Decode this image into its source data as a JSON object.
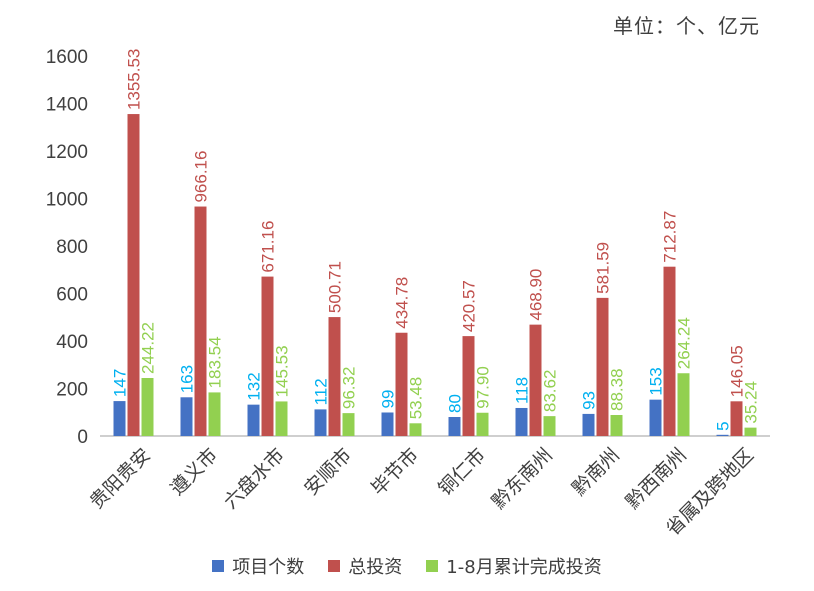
{
  "unit_note": "单位：个、亿元",
  "colors": {
    "projects": "#4472C4",
    "total": "#C0504D",
    "completed": "#92D050",
    "label_projects": "#00B0F0",
    "label_total": "#C0504D",
    "label_completed": "#92D050",
    "axis_text": "#404040",
    "axis_line": "#BFBFBF"
  },
  "chart_data": {
    "type": "bar",
    "title": "",
    "xlabel": "",
    "ylabel": "",
    "ylim": [
      0,
      1600
    ],
    "yticks": [
      0,
      200,
      400,
      600,
      800,
      1000,
      1200,
      1400,
      1600
    ],
    "grid": false,
    "legend_position": "bottom",
    "categories": [
      "贵阳贵安",
      "遵义市",
      "六盘水市",
      "安顺市",
      "毕节市",
      "铜仁市",
      "黔东南州",
      "黔南州",
      "黔西南州",
      "省属及跨地区"
    ],
    "series": [
      {
        "name": "项目个数",
        "values": [
          147,
          163,
          132,
          112,
          99,
          80,
          118,
          93,
          153,
          5
        ],
        "labels": [
          "147",
          "163",
          "132",
          "112",
          "99",
          "80",
          "118",
          "93",
          "153",
          "5"
        ]
      },
      {
        "name": "总投资",
        "values": [
          1355.53,
          966.16,
          671.16,
          500.71,
          434.78,
          420.57,
          468.9,
          581.59,
          712.87,
          146.05
        ],
        "labels": [
          "1355.53",
          "966.16",
          "671.16",
          "500.71",
          "434.78",
          "420.57",
          "468.90",
          "581.59",
          "712.87",
          "146.05"
        ]
      },
      {
        "name": "1-8月累计完成投资",
        "values": [
          244.22,
          183.54,
          145.53,
          96.32,
          53.48,
          97.9,
          83.62,
          88.38,
          264.24,
          35.24
        ],
        "labels": [
          "244.22",
          "183.54",
          "145.53",
          "96.32",
          "53.48",
          "97.90",
          "83.62",
          "88.38",
          "264.24",
          "35.24"
        ]
      }
    ]
  }
}
